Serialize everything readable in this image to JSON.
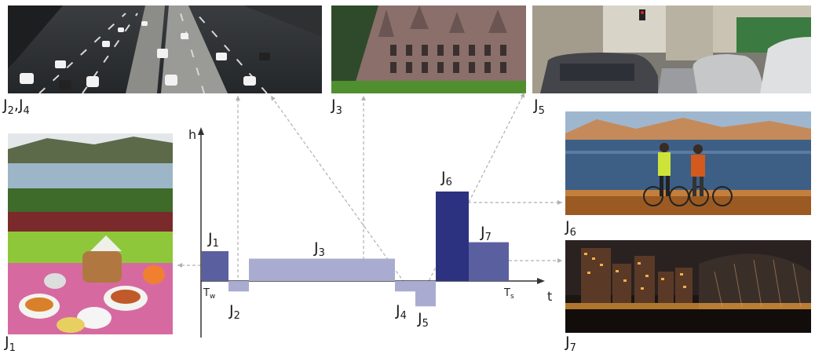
{
  "diagram": {
    "axis_y_label": "h",
    "axis_x_label": "t",
    "tick_start": {
      "base": "T",
      "sub": "w"
    },
    "tick_end": {
      "base": "T",
      "sub": "s"
    },
    "colors": {
      "bar_light": "#a9acd0",
      "bar_mid": "#5a5f9f",
      "bar_dark": "#2c3180",
      "axis": "#333333",
      "dashed": "#b0b0b0"
    },
    "bars": [
      {
        "base": "J",
        "sub": "1",
        "height": 1.0,
        "direction": "up",
        "shade": "mid"
      },
      {
        "base": "J",
        "sub": "2",
        "height": 0.35,
        "direction": "down",
        "shade": "light"
      },
      {
        "base": "J",
        "sub": "3",
        "height": 0.75,
        "direction": "up",
        "shade": "light"
      },
      {
        "base": "J",
        "sub": "4",
        "height": 0.35,
        "direction": "down",
        "shade": "light"
      },
      {
        "base": "J",
        "sub": "5",
        "height": 0.85,
        "direction": "down",
        "shade": "light"
      },
      {
        "base": "J",
        "sub": "6",
        "height": 3.0,
        "direction": "up",
        "shade": "dark"
      },
      {
        "base": "J",
        "sub": "7",
        "height": 1.3,
        "direction": "up",
        "shade": "mid"
      }
    ]
  },
  "photos": {
    "highway": {
      "label_parts": [
        [
          "J",
          "2"
        ],
        [
          "J",
          "4"
        ]
      ],
      "icon": "highway-traffic-photo"
    },
    "castle": {
      "label_parts": [
        [
          "J",
          "3"
        ]
      ],
      "icon": "castle-building-photo"
    },
    "street": {
      "label_parts": [
        [
          "J",
          "5"
        ]
      ],
      "icon": "street-traffic-photo"
    },
    "lake_cyclists": {
      "label_parts": [
        [
          "J",
          "6"
        ]
      ],
      "icon": "lake-cyclists-photo"
    },
    "city_night": {
      "label_parts": [
        [
          "J",
          "7"
        ]
      ],
      "icon": "city-night-photo"
    },
    "picnic": {
      "label_parts": [
        [
          "J",
          "1"
        ]
      ],
      "icon": "lakeside-picnic-photo"
    }
  },
  "label_text": {
    "highway_a": "J",
    "highway_a_sub": "2",
    "highway_sep": ",",
    "highway_b": "J",
    "highway_b_sub": "4",
    "castle": "J",
    "castle_sub": "3",
    "street": "J",
    "street_sub": "5",
    "lake": "J",
    "lake_sub": "6",
    "city": "J",
    "city_sub": "7",
    "picnic": "J",
    "picnic_sub": "1"
  }
}
